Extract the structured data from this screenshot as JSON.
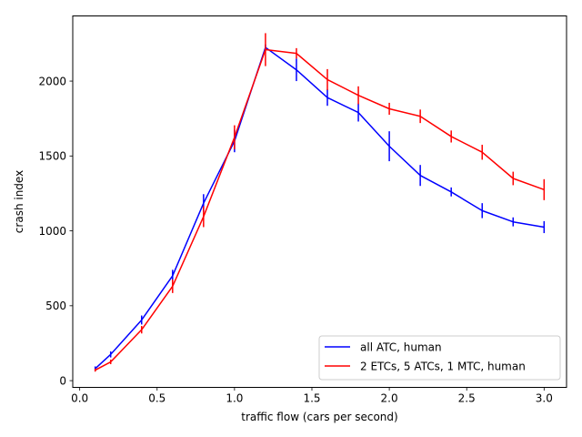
{
  "chart_data": {
    "type": "line",
    "title": "",
    "xlabel": "traffic flow (cars per second)",
    "ylabel": "crash index",
    "xlim": [
      -0.045,
      3.145
    ],
    "ylim": [
      -45,
      2435
    ],
    "xticks": [
      0.0,
      0.5,
      1.0,
      1.5,
      2.0,
      2.5,
      3.0
    ],
    "xtick_labels": [
      "0.0",
      "0.5",
      "1.0",
      "1.5",
      "2.0",
      "2.5",
      "3.0"
    ],
    "yticks": [
      0,
      500,
      1000,
      1500,
      2000
    ],
    "ytick_labels": [
      "0",
      "500",
      "1000",
      "1500",
      "2000"
    ],
    "grid": false,
    "legend_position": "lower-right",
    "series": [
      {
        "name": "all ATC, human",
        "color": "#0000ff",
        "x": [
          0.1,
          0.2,
          0.4,
          0.6,
          0.8,
          1.0,
          1.2,
          1.4,
          1.6,
          1.8,
          2.0,
          2.2,
          2.4,
          2.6,
          2.8,
          3.0
        ],
        "y": [
          80,
          175,
          405,
          700,
          1185,
          1600,
          2225,
          2075,
          1890,
          1790,
          1565,
          1370,
          1260,
          1135,
          1060,
          1025
        ],
        "err": [
          15,
          20,
          30,
          40,
          60,
          75,
          20,
          75,
          55,
          60,
          100,
          70,
          30,
          50,
          30,
          40
        ]
      },
      {
        "name": "2 ETCs, 5 ATCs, 1 MTC, human",
        "color": "#ff0000",
        "x": [
          0.1,
          0.2,
          0.4,
          0.6,
          0.8,
          1.0,
          1.2,
          1.4,
          1.6,
          1.8,
          2.0,
          2.2,
          2.4,
          2.6,
          2.8,
          3.0
        ],
        "y": [
          70,
          125,
          340,
          630,
          1095,
          1625,
          2210,
          2185,
          2010,
          1905,
          1815,
          1765,
          1630,
          1525,
          1350,
          1275
        ],
        "err": [
          10,
          15,
          25,
          45,
          70,
          80,
          110,
          35,
          70,
          60,
          40,
          45,
          40,
          50,
          45,
          70
        ]
      }
    ]
  }
}
